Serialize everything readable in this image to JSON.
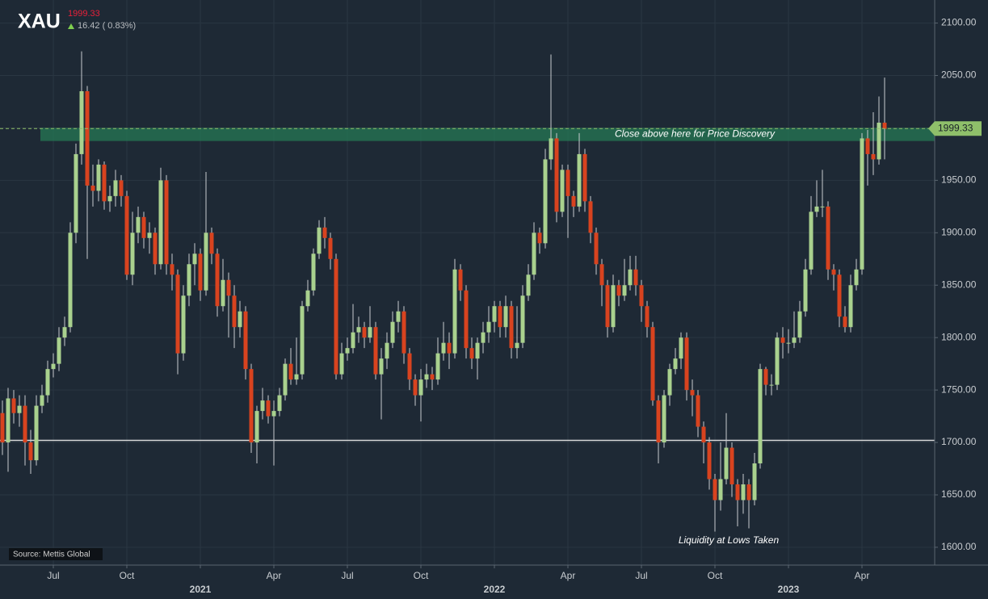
{
  "chart_data": {
    "type": "candlestick",
    "title": "XAU",
    "price": 1999.33,
    "change": "16.42 ( 0.83%)",
    "source": "Source: Mettis Global",
    "up_color": "#a9d18e",
    "down_color": "#d8431f",
    "grid": true,
    "ylim": [
      1583,
      2122
    ],
    "yticks": [
      {
        "value": 1600,
        "label": "1600.00"
      },
      {
        "value": 1650,
        "label": "1650.00"
      },
      {
        "value": 1700,
        "label": "1700.00"
      },
      {
        "value": 1750,
        "label": "1750.00"
      },
      {
        "value": 1800,
        "label": "1800.00"
      },
      {
        "value": 1850,
        "label": "1850.00"
      },
      {
        "value": 1900,
        "label": "1900.00"
      },
      {
        "value": 1950,
        "label": "1950.00"
      },
      {
        "value": 2000,
        "label": "2000.00"
      },
      {
        "value": 2050,
        "label": "2050.00"
      },
      {
        "value": 2100,
        "label": "2100.00"
      }
    ],
    "zone": {
      "low": 1987.5,
      "high": 2000,
      "label": "Close above here for Price Discovery"
    },
    "support": 1702,
    "annotation": "Liquidity at Lows Taken",
    "categories": [
      null,
      null,
      null,
      null,
      null,
      null,
      null,
      null,
      null,
      "Jul",
      null,
      null,
      null,
      null,
      null,
      null,
      null,
      null,
      null,
      null,
      null,
      null,
      "Oct",
      null,
      null,
      null,
      null,
      null,
      null,
      null,
      null,
      null,
      null,
      null,
      null,
      "2021",
      null,
      null,
      null,
      null,
      null,
      null,
      null,
      null,
      null,
      null,
      null,
      null,
      "Apr",
      null,
      null,
      null,
      null,
      null,
      null,
      null,
      null,
      null,
      null,
      null,
      null,
      "Jul",
      null,
      null,
      null,
      null,
      null,
      null,
      null,
      null,
      null,
      null,
      null,
      null,
      "Oct",
      null,
      null,
      null,
      null,
      null,
      null,
      null,
      null,
      null,
      null,
      null,
      null,
      "2022",
      null,
      null,
      null,
      null,
      null,
      null,
      null,
      null,
      null,
      null,
      null,
      null,
      "Apr",
      null,
      null,
      null,
      null,
      null,
      null,
      null,
      null,
      null,
      null,
      null,
      null,
      "Jul",
      null,
      null,
      null,
      null,
      null,
      null,
      null,
      null,
      null,
      null,
      null,
      null,
      "Oct",
      null,
      null,
      null,
      null,
      null,
      null,
      null,
      null,
      null,
      null,
      null,
      null,
      "2023",
      null,
      null,
      null,
      null,
      null,
      null,
      null,
      null,
      null,
      null,
      null,
      null,
      "Apr",
      null,
      null,
      null,
      null
    ],
    "open": [
      1728,
      1700,
      1742,
      1728,
      1735,
      1700,
      1683,
      1735,
      1745,
      1770,
      1775,
      1800,
      1810,
      1900,
      1975,
      2035,
      1945,
      1940,
      1965,
      1930,
      1935,
      1950,
      1935,
      1860,
      1900,
      1915,
      1895,
      1900,
      1870,
      1950,
      1870,
      1860,
      1785,
      1840,
      1870,
      1880,
      1845,
      1900,
      1880,
      1830,
      1855,
      1840,
      1810,
      1825,
      1770,
      1700,
      1730,
      1740,
      1725,
      1730,
      1745,
      1775,
      1760,
      1765,
      1830,
      1845,
      1880,
      1905,
      1895,
      1875,
      1765,
      1785,
      1790,
      1805,
      1810,
      1800,
      1810,
      1765,
      1780,
      1795,
      1815,
      1825,
      1785,
      1760,
      1745,
      1760,
      1765,
      1760,
      1785,
      1795,
      1785,
      1865,
      1845,
      1790,
      1780,
      1795,
      1805,
      1815,
      1830,
      1810,
      1830,
      1790,
      1795,
      1840,
      1860,
      1900,
      1890,
      1970,
      1990,
      1920,
      1960,
      1935,
      1925,
      1975,
      1930,
      1900,
      1870,
      1850,
      1810,
      1850,
      1840,
      1850,
      1865,
      1850,
      1830,
      1810,
      1740,
      1700,
      1745,
      1770,
      1780,
      1800,
      1750,
      1745,
      1715,
      1700,
      1665,
      1645,
      1665,
      1695,
      1660,
      1645,
      1660,
      1645,
      1680,
      1770,
      1755,
      1755,
      1800,
      1795,
      1795,
      1800,
      1825,
      1865,
      1920,
      1925,
      1925,
      1865,
      1860,
      1820,
      1810,
      1850,
      1865,
      1990,
      1975,
      1970,
      2005
    ],
    "high": [
      1740,
      1752,
      1750,
      1745,
      1745,
      1712,
      1745,
      1755,
      1778,
      1785,
      1810,
      1820,
      1910,
      1985,
      2073,
      2040,
      1965,
      1970,
      1968,
      1945,
      1960,
      1955,
      1940,
      1920,
      1925,
      1920,
      1910,
      1905,
      1962,
      1955,
      1880,
      1865,
      1850,
      1880,
      1890,
      1885,
      1958,
      1905,
      1885,
      1875,
      1862,
      1850,
      1835,
      1830,
      1775,
      1735,
      1752,
      1745,
      1740,
      1752,
      1780,
      1790,
      1800,
      1835,
      1855,
      1885,
      1912,
      1915,
      1900,
      1880,
      1795,
      1800,
      1832,
      1820,
      1815,
      1830,
      1815,
      1790,
      1805,
      1825,
      1835,
      1830,
      1790,
      1765,
      1770,
      1775,
      1772,
      1800,
      1815,
      1805,
      1875,
      1870,
      1850,
      1800,
      1800,
      1815,
      1830,
      1835,
      1835,
      1840,
      1835,
      1830,
      1850,
      1870,
      1910,
      1905,
      1980,
      2070,
      1995,
      1965,
      1965,
      1940,
      1995,
      1980,
      1935,
      1905,
      1875,
      1855,
      1860,
      1855,
      1875,
      1878,
      1878,
      1855,
      1835,
      1815,
      1745,
      1750,
      1775,
      1790,
      1805,
      1805,
      1760,
      1750,
      1720,
      1705,
      1670,
      1700,
      1728,
      1700,
      1665,
      1670,
      1665,
      1690,
      1775,
      1772,
      1765,
      1805,
      1810,
      1808,
      1825,
      1835,
      1875,
      1935,
      1950,
      1960,
      1930,
      1870,
      1865,
      1830,
      1860,
      1875,
      1995,
      1998,
      2015,
      2030,
      2048
    ],
    "low": [
      1688,
      1672,
      1718,
      1715,
      1678,
      1670,
      1678,
      1728,
      1738,
      1762,
      1768,
      1792,
      1805,
      1890,
      1965,
      1875,
      1925,
      1930,
      1922,
      1920,
      1925,
      1925,
      1855,
      1850,
      1890,
      1885,
      1880,
      1860,
      1865,
      1860,
      1845,
      1765,
      1778,
      1830,
      1850,
      1835,
      1840,
      1870,
      1820,
      1825,
      1800,
      1790,
      1800,
      1760,
      1690,
      1680,
      1722,
      1718,
      1678,
      1725,
      1740,
      1755,
      1755,
      1760,
      1825,
      1840,
      1875,
      1885,
      1865,
      1760,
      1760,
      1778,
      1785,
      1795,
      1790,
      1795,
      1760,
      1722,
      1770,
      1790,
      1805,
      1775,
      1750,
      1735,
      1720,
      1752,
      1750,
      1755,
      1778,
      1770,
      1780,
      1835,
      1780,
      1770,
      1760,
      1785,
      1795,
      1805,
      1800,
      1800,
      1780,
      1780,
      1790,
      1835,
      1855,
      1880,
      1885,
      1960,
      1910,
      1915,
      1895,
      1915,
      1920,
      1920,
      1890,
      1860,
      1830,
      1800,
      1805,
      1830,
      1835,
      1845,
      1840,
      1815,
      1800,
      1735,
      1680,
      1695,
      1735,
      1765,
      1770,
      1740,
      1725,
      1705,
      1680,
      1655,
      1615,
      1635,
      1660,
      1648,
      1620,
      1632,
      1618,
      1640,
      1675,
      1745,
      1745,
      1750,
      1780,
      1785,
      1790,
      1795,
      1820,
      1860,
      1915,
      1915,
      1855,
      1845,
      1810,
      1805,
      1805,
      1845,
      1860,
      1945,
      1955,
      1965,
      1970
    ],
    "close": [
      1700,
      1742,
      1728,
      1735,
      1700,
      1683,
      1735,
      1745,
      1770,
      1775,
      1800,
      1810,
      1900,
      1975,
      2035,
      1945,
      1940,
      1965,
      1930,
      1935,
      1950,
      1935,
      1860,
      1900,
      1915,
      1895,
      1900,
      1870,
      1950,
      1870,
      1860,
      1785,
      1840,
      1870,
      1880,
      1845,
      1900,
      1880,
      1830,
      1855,
      1840,
      1810,
      1825,
      1770,
      1700,
      1730,
      1740,
      1725,
      1730,
      1745,
      1775,
      1760,
      1765,
      1830,
      1845,
      1880,
      1905,
      1895,
      1875,
      1765,
      1785,
      1790,
      1805,
      1810,
      1800,
      1810,
      1765,
      1780,
      1795,
      1815,
      1825,
      1785,
      1760,
      1745,
      1760,
      1765,
      1760,
      1785,
      1795,
      1785,
      1865,
      1845,
      1790,
      1780,
      1795,
      1805,
      1815,
      1830,
      1810,
      1830,
      1790,
      1795,
      1840,
      1860,
      1900,
      1890,
      1970,
      1990,
      1920,
      1960,
      1935,
      1925,
      1975,
      1930,
      1900,
      1870,
      1850,
      1810,
      1850,
      1840,
      1850,
      1865,
      1850,
      1830,
      1810,
      1740,
      1700,
      1745,
      1770,
      1780,
      1800,
      1750,
      1745,
      1715,
      1700,
      1665,
      1645,
      1665,
      1695,
      1660,
      1645,
      1660,
      1645,
      1680,
      1770,
      1755,
      1755,
      1800,
      1795,
      1795,
      1800,
      1825,
      1865,
      1920,
      1925,
      1925,
      1865,
      1860,
      1820,
      1810,
      1850,
      1865,
      1990,
      1975,
      1970,
      2005,
      1999
    ]
  }
}
